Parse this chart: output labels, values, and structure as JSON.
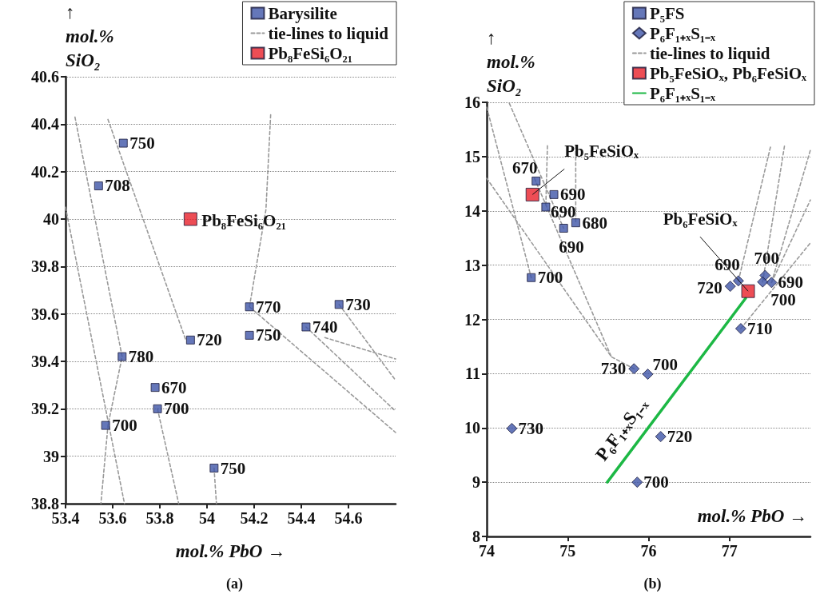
{
  "chart_data": [
    {
      "type": "scatter",
      "title": "(a)",
      "xlabel": "mol.% PbO →",
      "ylabel": "↑\nmol.%\nSiO₂",
      "xlim": [
        53.4,
        54.8
      ],
      "xticks": [
        53.4,
        53.6,
        53.8,
        54,
        54.2,
        54.4,
        54.6
      ],
      "ylim": [
        38.8,
        40.6
      ],
      "yticks": [
        38.8,
        39,
        39.2,
        39.4,
        39.6,
        39.8,
        40,
        40.2,
        40.4,
        40.6
      ],
      "grid": "y",
      "legend": "top right",
      "annotations": [
        {
          "text": "750",
          "x": 53.645,
          "y": 40.32
        },
        {
          "text": "708",
          "x": 53.54,
          "y": 40.14
        },
        {
          "text": "770",
          "x": 54.18,
          "y": 39.63
        },
        {
          "text": "730",
          "x": 54.56,
          "y": 39.64
        },
        {
          "text": "740",
          "x": 54.42,
          "y": 39.545
        },
        {
          "text": "720",
          "x": 53.93,
          "y": 39.49
        },
        {
          "text": "750",
          "x": 54.18,
          "y": 39.51
        },
        {
          "text": "780",
          "x": 53.64,
          "y": 39.42
        },
        {
          "text": "670",
          "x": 53.78,
          "y": 39.29
        },
        {
          "text": "700",
          "x": 53.79,
          "y": 39.2
        },
        {
          "text": "700",
          "x": 53.57,
          "y": 39.13
        },
        {
          "text": "750",
          "x": 54.03,
          "y": 38.95
        },
        {
          "text": "Pb₈FeSi₆O₂₁",
          "x": 53.93,
          "y": 40.0
        }
      ],
      "series": [
        {
          "name": "Barysilite",
          "color": "#3f55a8",
          "marker": "square",
          "x": [
            53.645,
            53.54,
            54.18,
            54.56,
            54.42,
            53.93,
            54.18,
            53.64,
            53.78,
            53.79,
            53.57,
            54.03
          ],
          "values": [
            40.32,
            40.14,
            39.63,
            39.64,
            39.545,
            39.49,
            39.51,
            39.42,
            39.29,
            39.2,
            39.13,
            38.95
          ]
        },
        {
          "name": "tie-lines to liquid",
          "type": "line",
          "color": "#999999",
          "line_style": "dashed",
          "marker": "none",
          "x": [
            53.44,
            53.64,
            53.58,
            53.55
          ],
          "values": [
            40.43,
            39.42,
            39.13,
            38.8
          ]
        },
        {
          "type": "line",
          "color": "#999999",
          "line_style": "dashed",
          "marker": "none",
          "x": [
            53.58,
            53.8,
            53.91
          ],
          "values": [
            40.42,
            39.8,
            39.49
          ]
        },
        {
          "type": "line",
          "color": "#999999",
          "line_style": "dashed",
          "marker": "none",
          "x": [
            53.4,
            53.65
          ],
          "values": [
            40.05,
            38.8
          ]
        },
        {
          "type": "line",
          "color": "#999999",
          "line_style": "dashed",
          "marker": "none",
          "x": [
            53.79,
            53.88
          ],
          "values": [
            39.2,
            38.8
          ]
        },
        {
          "type": "line",
          "color": "#999999",
          "line_style": "dashed",
          "marker": "none",
          "x": [
            54.03,
            54.04
          ],
          "values": [
            38.95,
            38.8
          ]
        },
        {
          "type": "line",
          "color": "#999999",
          "line_style": "dashed",
          "marker": "none",
          "x": [
            54.27,
            54.25,
            54.18
          ],
          "values": [
            40.44,
            40.04,
            39.63
          ]
        },
        {
          "type": "line",
          "color": "#999999",
          "line_style": "dashed",
          "marker": "none",
          "x": [
            54.18,
            54.8
          ],
          "values": [
            39.63,
            39.1
          ]
        },
        {
          "type": "line",
          "color": "#999999",
          "line_style": "dashed",
          "marker": "none",
          "x": [
            54.42,
            54.8
          ],
          "values": [
            39.545,
            39.19
          ]
        },
        {
          "type": "line",
          "color": "#999999",
          "line_style": "dashed",
          "marker": "none",
          "x": [
            54.56,
            54.8
          ],
          "values": [
            39.64,
            39.32
          ]
        },
        {
          "type": "line",
          "color": "#999999",
          "line_style": "dashed",
          "marker": "none",
          "x": [
            54.5,
            54.8
          ],
          "values": [
            39.5,
            39.41
          ]
        },
        {
          "name": "Pb₈FeSi₆O₂₁",
          "color": "#e8202a",
          "marker": "square",
          "x": [
            53.93
          ],
          "values": [
            40.0
          ]
        }
      ]
    },
    {
      "type": "scatter",
      "title": "(b)",
      "xlabel": "mol.% PbO →",
      "ylabel": "↑\nmol.%\nSiO₂",
      "xlim": [
        74,
        78
      ],
      "xticks": [
        74,
        75,
        76,
        77
      ],
      "ylim": [
        8,
        16
      ],
      "yticks": [
        8,
        9,
        10,
        11,
        12,
        13,
        14,
        15,
        16
      ],
      "grid": "y",
      "legend": "top right",
      "annotations": [
        {
          "text": "670",
          "x": 74.61,
          "y": 14.55
        },
        {
          "text": "690",
          "x": 74.83,
          "y": 14.3
        },
        {
          "text": "690",
          "x": 74.73,
          "y": 14.07
        },
        {
          "text": "680",
          "x": 75.1,
          "y": 13.78
        },
        {
          "text": "690",
          "x": 74.95,
          "y": 13.68
        },
        {
          "text": "700",
          "x": 74.55,
          "y": 12.77
        },
        {
          "text": "730",
          "x": 75.82,
          "y": 11.09
        },
        {
          "text": "700",
          "x": 75.99,
          "y": 10.99
        },
        {
          "text": "730",
          "x": 74.31,
          "y": 9.99
        },
        {
          "text": "720",
          "x": 76.15,
          "y": 9.84
        },
        {
          "text": "700",
          "x": 75.86,
          "y": 9.0
        },
        {
          "text": "710",
          "x": 77.14,
          "y": 11.83
        },
        {
          "text": "690",
          "x": 77.11,
          "y": 12.71
        },
        {
          "text": "720",
          "x": 77.01,
          "y": 12.61
        },
        {
          "text": "700",
          "x": 77.44,
          "y": 12.81
        },
        {
          "text": "690",
          "x": 77.52,
          "y": 12.68
        },
        {
          "text": "700",
          "x": 77.41,
          "y": 12.69
        },
        {
          "text": "Pb₅FeSiOₓ",
          "x": 74.565,
          "y": 14.3
        },
        {
          "text": "Pb₆FeSiOₓ",
          "x": 77.23,
          "y": 12.52
        }
      ],
      "series": [
        {
          "name": "P₅FS",
          "color": "#3f55a8",
          "marker": "square",
          "x": [
            74.61,
            74.83,
            74.73,
            75.1,
            74.95,
            74.55
          ],
          "values": [
            14.55,
            14.3,
            14.07,
            13.78,
            13.68,
            12.77
          ]
        },
        {
          "name": "P₆F₁₊ₓS₁₋ₓ",
          "color": "#3f55a8",
          "marker": "diamond",
          "x": [
            75.82,
            75.99,
            74.31,
            76.15,
            75.86,
            77.14,
            77.11,
            77.01,
            77.44,
            77.52,
            77.41
          ],
          "values": [
            11.09,
            10.99,
            9.99,
            9.84,
            9.0,
            11.83,
            12.71,
            12.61,
            12.81,
            12.68,
            12.69
          ]
        },
        {
          "name": "tie-lines to liquid",
          "type": "line",
          "color": "#999999",
          "line_style": "dashed",
          "marker": "none",
          "x": [
            74,
            74.55
          ],
          "values": [
            15.91,
            12.77
          ]
        },
        {
          "type": "line",
          "color": "#999999",
          "line_style": "dashed",
          "marker": "none",
          "x": [
            74.28,
            74.95
          ],
          "values": [
            15.98,
            13.68
          ]
        },
        {
          "type": "line",
          "color": "#999999",
          "line_style": "dashed",
          "marker": "none",
          "x": [
            74,
            75.54,
            75.82
          ],
          "values": [
            14.6,
            11.31,
            11.09
          ]
        },
        {
          "type": "line",
          "color": "#999999",
          "line_style": "dashed",
          "marker": "none",
          "x": [
            74.75,
            74.73
          ],
          "values": [
            15.2,
            14.07
          ]
        },
        {
          "type": "line",
          "color": "#999999",
          "line_style": "dashed",
          "marker": "none",
          "x": [
            75.1,
            75.1
          ],
          "values": [
            15.2,
            13.78
          ]
        },
        {
          "type": "line",
          "color": "#999999",
          "line_style": "dashed",
          "marker": "none",
          "x": [
            74.59,
            75.54
          ],
          "values": [
            14.6,
            11.31
          ]
        },
        {
          "type": "line",
          "color": "#999999",
          "line_style": "dashed",
          "marker": "none",
          "x": [
            77.11,
            77.51
          ],
          "values": [
            12.71,
            15.2
          ]
        },
        {
          "type": "line",
          "color": "#999999",
          "line_style": "dashed",
          "marker": "none",
          "x": [
            77.41,
            77.68
          ],
          "values": [
            12.69,
            15.2
          ]
        },
        {
          "type": "line",
          "color": "#999999",
          "line_style": "dashed",
          "marker": "none",
          "x": [
            77.52,
            78
          ],
          "values": [
            12.68,
            15.12
          ]
        },
        {
          "type": "line",
          "color": "#999999",
          "line_style": "dashed",
          "marker": "none",
          "x": [
            77.14,
            78
          ],
          "values": [
            11.83,
            13.41
          ]
        },
        {
          "type": "line",
          "color": "#999999",
          "line_style": "dashed",
          "marker": "none",
          "x": [
            77.52,
            78
          ],
          "values": [
            12.68,
            14.2
          ]
        },
        {
          "name": "Pb₅FeSiOₓ, Pb₆FeSiOₓ",
          "color": "#e8202a",
          "marker": "square",
          "x": [
            74.565,
            77.23
          ],
          "values": [
            14.3,
            12.52
          ]
        },
        {
          "name": "P₆F₁₊ₓS₁₋ₓ",
          "type": "line",
          "color": "#1db845",
          "line_style": "solid",
          "marker": "none",
          "x": [
            75.49,
            77.2
          ],
          "values": [
            9.0,
            12.39
          ]
        }
      ]
    }
  ]
}
